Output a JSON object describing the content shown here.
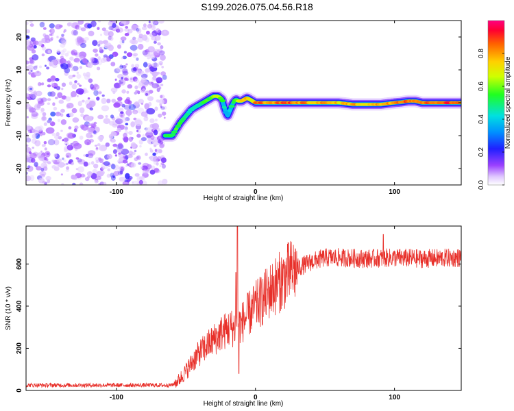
{
  "title": "S199.2026.075.04.56.R18",
  "chart_data": [
    {
      "type": "heatmap",
      "name": "spectrogram",
      "xlabel": "Height of straight line (km)",
      "ylabel": "Frequency (Hz)",
      "xlim": [
        -165,
        148
      ],
      "ylim": [
        -25,
        25
      ],
      "xticks": [
        -100,
        0,
        100
      ],
      "yticks": [
        -20,
        -10,
        0,
        10,
        20
      ],
      "noise_region": [
        -165,
        -65
      ],
      "ridge": {
        "x": [
          -65,
          -63,
          -60,
          -57,
          -54,
          -50,
          -46,
          -42,
          -38,
          -34,
          -30,
          -27,
          -24,
          -22,
          -20,
          -18,
          -16,
          -14,
          -12,
          -10,
          -8,
          -6,
          -4,
          -2,
          0,
          5,
          10,
          20,
          30,
          40,
          50,
          60,
          70,
          80,
          90,
          100,
          105,
          110,
          115,
          120,
          130,
          140,
          148
        ],
        "y": [
          -10,
          -10,
          -10,
          -8,
          -6,
          -4,
          -2,
          -1,
          0,
          1,
          2,
          2,
          1,
          -2,
          -4,
          -2,
          0,
          1,
          0.5,
          0.5,
          1,
          1.5,
          1,
          0.5,
          0,
          0,
          0,
          0,
          0,
          0,
          0,
          0,
          -0.5,
          -0.5,
          -0.5,
          0,
          0.2,
          0.5,
          0.5,
          0,
          0,
          0,
          0
        ],
        "amplitude": [
          0.55,
          0.6,
          0.55,
          0.6,
          0.6,
          0.5,
          0.45,
          0.5,
          0.55,
          0.6,
          0.65,
          0.7,
          0.6,
          0.45,
          0.35,
          0.5,
          0.6,
          0.65,
          0.7,
          0.75,
          0.8,
          0.85,
          0.75,
          0.7,
          0.95,
          0.9,
          0.85,
          0.95,
          0.9,
          0.85,
          0.85,
          0.8,
          0.85,
          0.8,
          0.85,
          0.9,
          0.95,
          0.95,
          0.9,
          0.9,
          0.95,
          0.95,
          0.9
        ]
      },
      "colorbar": {
        "label": "Normalized spectral amplitude",
        "ticks": [
          0.0,
          0.2,
          0.4,
          0.6,
          0.8
        ],
        "range": [
          0,
          1
        ]
      }
    },
    {
      "type": "line",
      "name": "snr",
      "xlabel": "Height of straight line (km)",
      "ylabel": "SNR (10 * v/v)",
      "xlim": [
        -165,
        148
      ],
      "ylim": [
        0,
        780
      ],
      "xticks": [
        -100,
        0,
        100
      ],
      "yticks": [
        0,
        200,
        400,
        600
      ],
      "color": "#e8302a",
      "trend": {
        "x": [
          -165,
          -60,
          -55,
          -50,
          -45,
          -40,
          -35,
          -30,
          -25,
          -20,
          -15,
          -12,
          -10,
          -5,
          0,
          5,
          10,
          15,
          20,
          25,
          30,
          40,
          50,
          60,
          80,
          100,
          120,
          148
        ],
        "y": [
          25,
          25,
          50,
          90,
          140,
          180,
          210,
          240,
          270,
          290,
          300,
          310,
          320,
          360,
          400,
          430,
          470,
          500,
          530,
          560,
          580,
          610,
          630,
          630,
          625,
          630,
          625,
          630
        ]
      },
      "spikes": [
        {
          "x": -13,
          "y": 780
        },
        {
          "x": -14,
          "y": 560
        },
        {
          "x": -12,
          "y": 80
        },
        {
          "x": 92,
          "y": 740
        }
      ]
    }
  ]
}
